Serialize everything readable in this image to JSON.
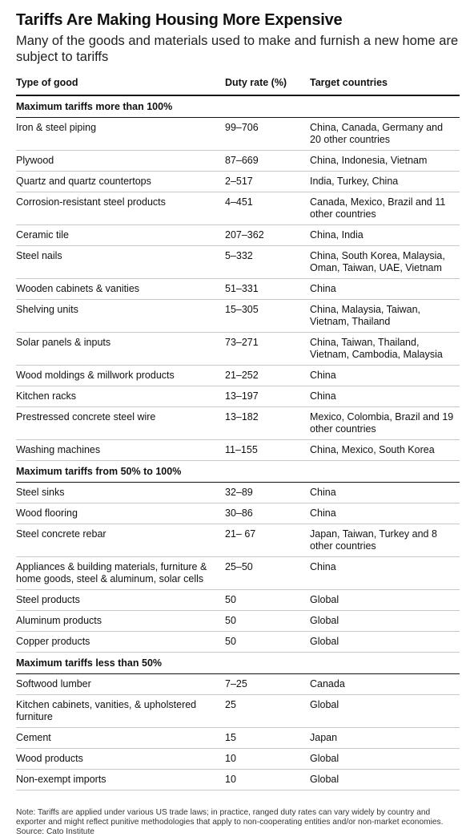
{
  "title": "Tariffs Are Making Housing More Expensive",
  "subtitle": "Many of the goods and materials used to make and furnish a new home are subject to tariffs",
  "columns": [
    "Type of good",
    "Duty rate (%)",
    "Target countries"
  ],
  "sections": [
    {
      "heading": "Maximum tariffs more than 100%",
      "rows": [
        {
          "good": "Iron & steel piping",
          "rate": "99–706",
          "countries": "China, Canada, Germany and 20 other countries"
        },
        {
          "good": "Plywood",
          "rate": "87–669",
          "countries": "China, Indonesia, Vietnam"
        },
        {
          "good": "Quartz and quartz countertops",
          "rate": "2–517",
          "countries": "India, Turkey, China"
        },
        {
          "good": "Corrosion-resistant steel products",
          "rate": "4–451",
          "countries": "Canada, Mexico, Brazil and 11 other countries"
        },
        {
          "good": "Ceramic tile",
          "rate": "207–362",
          "countries": "China, India"
        },
        {
          "good": "Steel nails",
          "rate": "5–332",
          "countries": "China, South Korea, Malaysia, Oman, Taiwan, UAE, Vietnam"
        },
        {
          "good": "Wooden cabinets & vanities",
          "rate": "51–331",
          "countries": "China"
        },
        {
          "good": "Shelving units",
          "rate": "15–305",
          "countries": "China, Malaysia, Taiwan, Vietnam, Thailand"
        },
        {
          "good": "Solar panels & inputs",
          "rate": "73–271",
          "countries": "China, Taiwan, Thailand, Vietnam, Cambodia, Malaysia"
        },
        {
          "good": "Wood moldings & millwork products",
          "rate": "21–252",
          "countries": "China"
        },
        {
          "good": "Kitchen racks",
          "rate": "13–197",
          "countries": "China"
        },
        {
          "good": "Prestressed concrete steel wire",
          "rate": "13–182",
          "countries": "Mexico, Colombia, Brazil and 19 other countries"
        },
        {
          "good": "Washing machines",
          "rate": "11–155",
          "countries": "China, Mexico, South Korea"
        }
      ]
    },
    {
      "heading": "Maximum tariffs from 50% to 100%",
      "rows": [
        {
          "good": "Steel sinks",
          "rate": "32–89",
          "countries": "China"
        },
        {
          "good": "Wood flooring",
          "rate": "30–86",
          "countries": "China"
        },
        {
          "good": "Steel concrete rebar",
          "rate": "21– 67",
          "countries": "Japan, Taiwan, Turkey and 8 other countries"
        },
        {
          "good": "Appliances & building materials, furniture & home goods, steel & aluminum, solar cells",
          "rate": "25–50",
          "countries": "China"
        },
        {
          "good": "Steel products",
          "rate": "50",
          "countries": "Global"
        },
        {
          "good": "Aluminum products",
          "rate": "50",
          "countries": "Global"
        },
        {
          "good": "Copper products",
          "rate": "50",
          "countries": "Global"
        }
      ]
    },
    {
      "heading": "Maximum tariffs less than 50%",
      "rows": [
        {
          "good": "Softwood lumber",
          "rate": "7–25",
          "countries": "Canada"
        },
        {
          "good": "Kitchen cabinets, vanities, & upholstered furniture",
          "rate": "25",
          "countries": "Global"
        },
        {
          "good": "Cement",
          "rate": "15",
          "countries": "Japan"
        },
        {
          "good": "Wood products",
          "rate": "10",
          "countries": "Global"
        },
        {
          "good": "Non-exempt imports",
          "rate": "10",
          "countries": "Global"
        }
      ]
    }
  ],
  "note": "Note: Tariffs are applied under various US trade laws; in practice, ranged duty rates can vary widely by country and exporter and might reflect punitive methodologies that apply to non-cooperating entities and/or non-market economies.",
  "source": "Source: Cato Institute"
}
